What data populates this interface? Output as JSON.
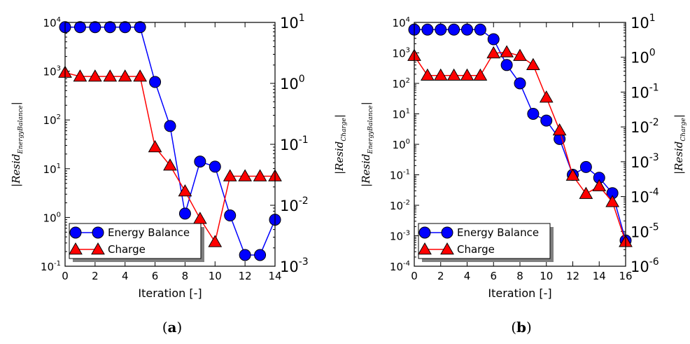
{
  "chart_data": [
    {
      "type": "line",
      "caption": "(a)",
      "xlabel": "Iteration [-]",
      "ylabel": "Resid_EnergyBalance",
      "ylabel_right": "Resid_Charge",
      "x_ticks": [
        "0",
        "2",
        "4",
        "6",
        "8",
        "10",
        "12",
        "14"
      ],
      "xlim": [
        0,
        14
      ],
      "ylim_left": [
        0.1,
        10000
      ],
      "ylim_right": [
        0.001,
        10
      ],
      "yscale": "log",
      "left_tick_labels": [
        {
          "base": "10",
          "exp": "-1"
        },
        {
          "base": "10",
          "exp": "0"
        },
        {
          "base": "10",
          "exp": "1"
        },
        {
          "base": "10",
          "exp": "2"
        },
        {
          "base": "10",
          "exp": "3"
        },
        {
          "base": "10",
          "exp": "4"
        }
      ],
      "right_tick_labels": [
        {
          "base": "10",
          "exp": "-3"
        },
        {
          "base": "10",
          "exp": "-2"
        },
        {
          "base": "10",
          "exp": "-1"
        },
        {
          "base": "10",
          "exp": "0"
        },
        {
          "base": "10",
          "exp": "1"
        }
      ],
      "legend_position": "bottom-left",
      "series": [
        {
          "name": "Energy Balance",
          "axis": "left",
          "color": "#0000ff",
          "edge_color": "#0000cc",
          "marker": "circle",
          "x": [
            0,
            1,
            2,
            3,
            4,
            5,
            6,
            7,
            8,
            9,
            10,
            11,
            12,
            13,
            14
          ],
          "y": [
            8000,
            8000,
            8000,
            8000,
            8000,
            8000,
            600,
            75,
            1.2,
            14,
            11,
            1.1,
            0.17,
            0.17,
            0.9
          ]
        },
        {
          "name": "Charge",
          "axis": "right",
          "color": "#ff0000",
          "edge_color": "#cc0000",
          "marker": "triangle",
          "x": [
            0,
            1,
            2,
            3,
            4,
            5,
            6,
            7,
            8,
            9,
            10,
            11,
            12,
            13,
            14
          ],
          "y": [
            1.5,
            1.3,
            1.3,
            1.3,
            1.3,
            1.3,
            0.09,
            0.045,
            0.017,
            0.006,
            0.0025,
            0.03,
            0.03,
            0.03,
            0.03
          ]
        }
      ]
    },
    {
      "type": "line",
      "caption": "(b)",
      "xlabel": "Iteration [-]",
      "ylabel": "Resid_EnergyBalance",
      "ylabel_right": "Resid_Charge",
      "x_ticks": [
        "0",
        "2",
        "4",
        "6",
        "8",
        "10",
        "12",
        "14",
        "16"
      ],
      "xlim": [
        0,
        16
      ],
      "ylim_left": [
        0.0001,
        10000
      ],
      "ylim_right": [
        1e-06,
        10
      ],
      "yscale": "log",
      "left_tick_labels": [
        {
          "base": "10",
          "exp": "-4"
        },
        {
          "base": "10",
          "exp": "-3"
        },
        {
          "base": "10",
          "exp": "-2"
        },
        {
          "base": "10",
          "exp": "-1"
        },
        {
          "base": "10",
          "exp": "0"
        },
        {
          "base": "10",
          "exp": "1"
        },
        {
          "base": "10",
          "exp": "2"
        },
        {
          "base": "10",
          "exp": "3"
        },
        {
          "base": "10",
          "exp": "4"
        }
      ],
      "right_tick_labels": [
        {
          "base": "10",
          "exp": "-6"
        },
        {
          "base": "10",
          "exp": "-5"
        },
        {
          "base": "10",
          "exp": "-4"
        },
        {
          "base": "10",
          "exp": "-3"
        },
        {
          "base": "10",
          "exp": "-2"
        },
        {
          "base": "10",
          "exp": "-1"
        },
        {
          "base": "10",
          "exp": "0"
        },
        {
          "base": "10",
          "exp": "1"
        }
      ],
      "legend_position": "bottom-left",
      "series": [
        {
          "name": "Energy Balance",
          "axis": "left",
          "color": "#0000ff",
          "edge_color": "#0000cc",
          "marker": "circle",
          "x": [
            0,
            1,
            2,
            3,
            4,
            5,
            6,
            7,
            8,
            9,
            10,
            11,
            12,
            13,
            14,
            15,
            16
          ],
          "y": [
            5800,
            5800,
            5800,
            5800,
            5800,
            5800,
            2800,
            400,
            100,
            10,
            6,
            1.5,
            0.1,
            0.18,
            0.08,
            0.025,
            0.0007
          ]
        },
        {
          "name": "Charge",
          "axis": "right",
          "color": "#ff0000",
          "edge_color": "#cc0000",
          "marker": "triangle",
          "x": [
            0,
            1,
            2,
            3,
            4,
            5,
            6,
            7,
            8,
            9,
            10,
            11,
            12,
            13,
            14,
            15,
            16
          ],
          "y": [
            1.1,
            0.3,
            0.3,
            0.3,
            0.3,
            0.3,
            1.3,
            1.4,
            1.1,
            0.6,
            0.07,
            0.008,
            0.0004,
            0.00012,
            0.0002,
            7e-05,
            5e-06
          ]
        }
      ]
    }
  ]
}
